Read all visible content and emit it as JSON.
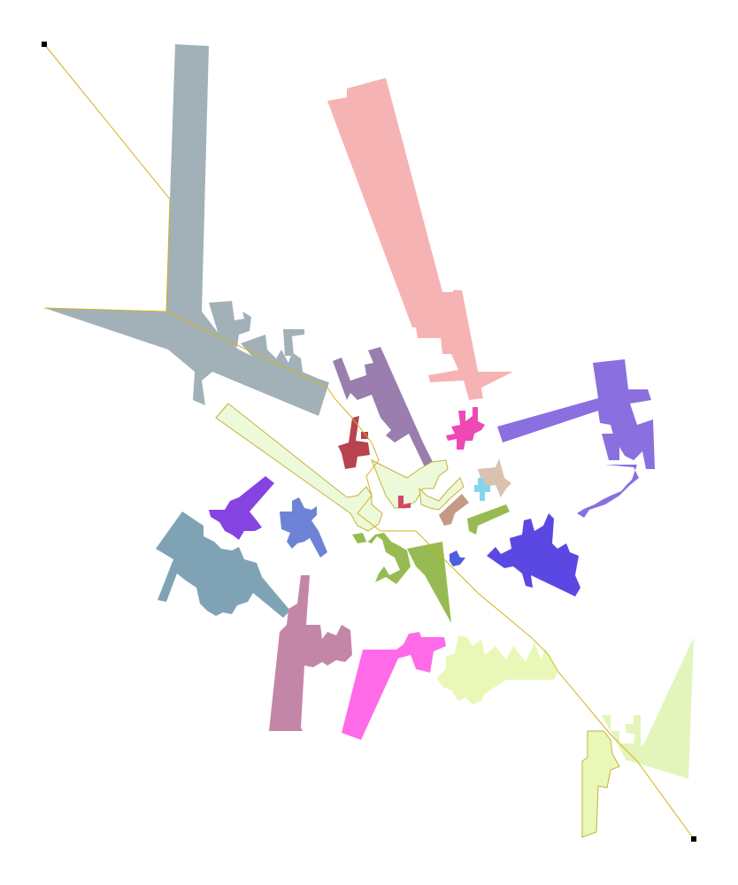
{
  "diagram": {
    "background": "#ffffff",
    "path_color": "#d4b21e",
    "endpoint_color": "#000000",
    "outline_color": "#c7b03c",
    "shape_colors": {
      "gray_blue": "#a2b1b8",
      "salmon": "#f6b3b4",
      "violet": "#8a6fe0",
      "mauve": "#9a7ead",
      "red": "#b8434f",
      "pale_green": "#ecfad9",
      "magenta_pink": "#ee48b5",
      "tan": "#d9c2b0",
      "sky": "#86d4ee",
      "brown": "#c39b82",
      "olive_green": "#97bb52",
      "indigo": "#5b48e3",
      "purple": "#8543e2",
      "cornflower": "#6e82d6",
      "steel_teal": "#7fa3b5",
      "dusty_rose": "#c486a7",
      "hot_pink": "#ff6ae8",
      "lime_pale": "#e9f8b6",
      "mint_pale": "#e3f5bb",
      "crimson_small": "#d44767",
      "blue_small": "#4d5ee0"
    }
  }
}
